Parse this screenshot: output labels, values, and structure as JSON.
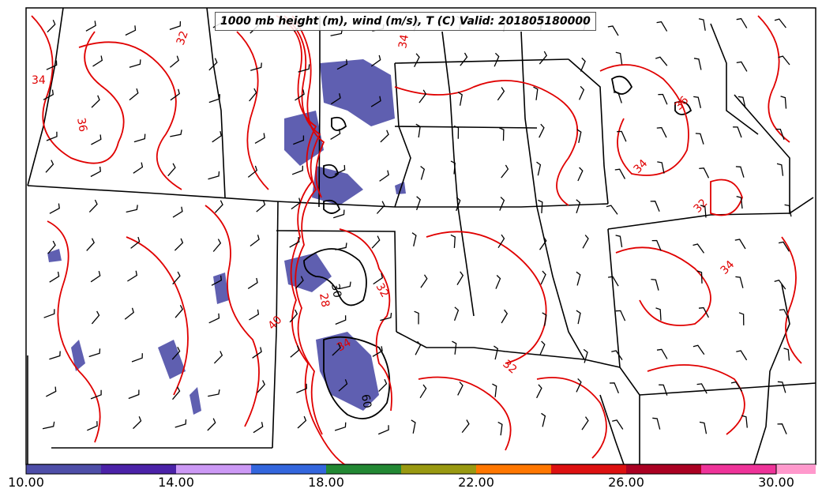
{
  "map": {
    "title": "1000 mb height (m), wind (m/s), T (C) Valid: 201805180000",
    "contour_labels": {
      "temperature": [
        "32",
        "34",
        "34",
        "36",
        "34",
        "32",
        "40",
        "32",
        "28",
        "34",
        "32",
        "36",
        "34"
      ],
      "height": [
        "30",
        "60"
      ]
    }
  },
  "colorbar": {
    "tick_labels": [
      "10.00",
      "14.00",
      "18.00",
      "22.00",
      "26.00",
      "30.00"
    ],
    "colors": [
      "#4e4ea8",
      "#4b22a8",
      "#cc99f5",
      "#3366dd",
      "#228833",
      "#999911",
      "#ff7700",
      "#dd1111",
      "#aa0022",
      "#ee3399",
      "#ff99cc"
    ]
  }
}
